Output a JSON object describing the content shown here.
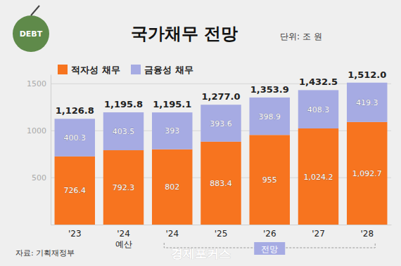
{
  "chart_data": {
    "type": "bar",
    "stacked": true,
    "data_labels": true,
    "grid": true,
    "legend": "top-left",
    "title": "국가채무 전망",
    "subtitle": "단위: 조 원",
    "source": "자료: 기획재정부",
    "watermark": "경제포커스",
    "icon_text": "DEBT",
    "annotation": "전망",
    "categories": [
      "'23",
      "'24\n예산",
      "'24",
      "'25",
      "'26",
      "'27",
      "'28"
    ],
    "series": [
      {
        "name": "적자성 채무",
        "color": "#f7741f",
        "values": [
          726.4,
          792.3,
          802,
          883.4,
          955,
          1024.2,
          1092.7
        ],
        "value_labels": [
          "726.4",
          "792.3",
          "802",
          "883.4",
          "955",
          "1,024.2",
          "1,092.7"
        ]
      },
      {
        "name": "금융성 채무",
        "color": "#a6abe3",
        "values": [
          400.3,
          403.5,
          393,
          393.6,
          398.9,
          408.3,
          419.3
        ]
      }
    ],
    "totals": [
      1126.8,
      1195.8,
      1195.1,
      1277.0,
      1353.9,
      1432.5,
      1512.0
    ],
    "total_labels": [
      "1,126.8",
      "1,195.8",
      "1,195.1",
      "1,277.0",
      "1,353.9",
      "1,432.5",
      "1,512.0"
    ],
    "ylim": [
      0,
      1600
    ],
    "yticks": [
      500,
      1000,
      1500
    ]
  }
}
